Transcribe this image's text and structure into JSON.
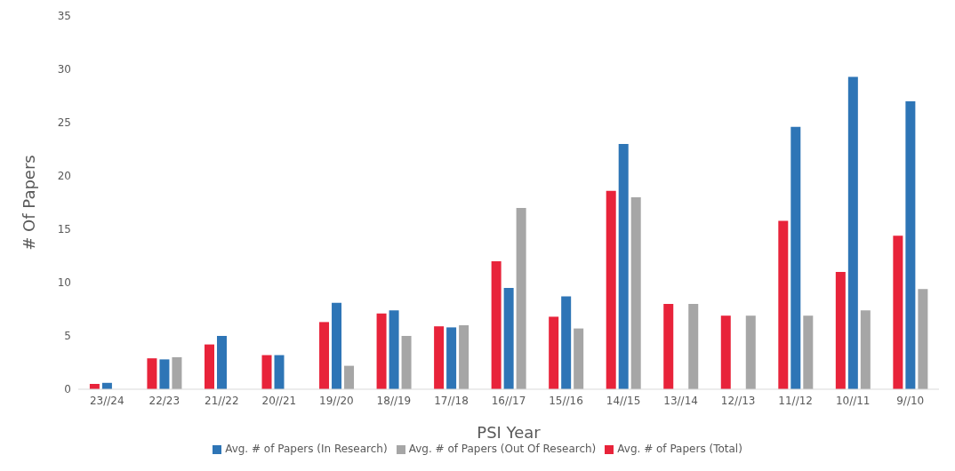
{
  "chart_data": {
    "type": "bar",
    "xlabel": "PSI Year",
    "ylabel": "# Of Papers",
    "categories": [
      "23//24",
      "22/23",
      "21//22",
      "20//21",
      "19//20",
      "18//19",
      "17//18",
      "16//17",
      "15//16",
      "14//15",
      "13//14",
      "12//13",
      "11//12",
      "10//11",
      "9//10"
    ],
    "series": [
      {
        "name": "Avg. # of Papers (Total)",
        "color": "#e8233a",
        "values": [
          0.5,
          2.9,
          4.2,
          3.2,
          6.3,
          7.1,
          5.9,
          12,
          6.8,
          18.6,
          8,
          6.9,
          15.8,
          11,
          14.4
        ]
      },
      {
        "name": "Avg. # of Papers (In Research)",
        "color": "#2e75b6",
        "values": [
          0.6,
          2.8,
          5,
          3.2,
          8.1,
          7.4,
          5.8,
          9.5,
          8.7,
          23,
          null,
          null,
          24.6,
          29.3,
          27
        ]
      },
      {
        "name": "Avg. # of Papers (Out Of Research)",
        "color": "#a6a6a6",
        "values": [
          null,
          3,
          null,
          null,
          2.2,
          5,
          6,
          17,
          5.7,
          18,
          8,
          6.9,
          6.9,
          7.4,
          9.4
        ]
      }
    ],
    "ylim": [
      0,
      35
    ],
    "yticks": [
      0,
      5,
      10,
      15,
      20,
      25,
      30,
      35
    ],
    "grid": false,
    "legend": "bottom"
  }
}
